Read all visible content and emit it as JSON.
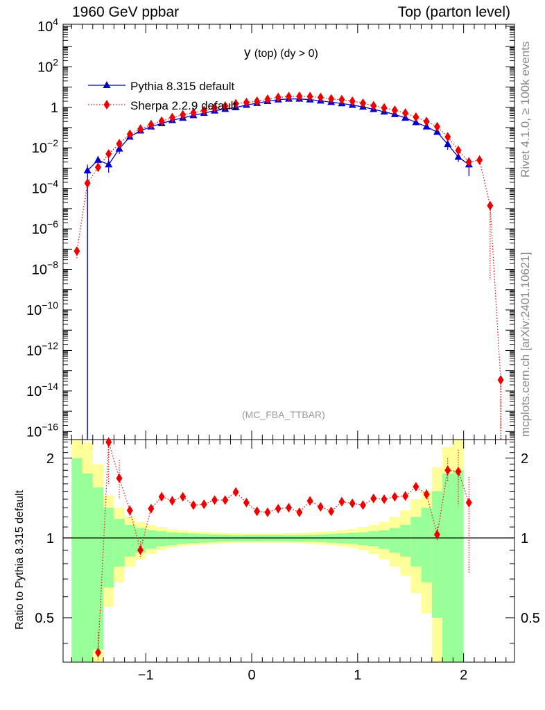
{
  "header": {
    "left_title": "1960 GeV ppbar",
    "right_title": "Top (parton level)"
  },
  "plot_title_main": "y",
  "plot_title_sub": "(top) (dy > 0)",
  "analysis_tag": "(MC_FBA_TTBAR)",
  "side_labels": {
    "rivet": "Rivet 4.1.0, ≥ 100k events",
    "mcplots": "mcplots.cern.ch [arXiv:2401.10621]"
  },
  "ratio_ylabel": "Ratio to Pythia 8.315 default",
  "colors": {
    "pythia": "#0000cc",
    "sherpa": "#ee0000",
    "band_inner": "#99ff99",
    "band_outer": "#ffff99"
  },
  "chart_data": {
    "type": "scatter",
    "x_edges": [
      -1.7,
      -1.6,
      -1.5,
      -1.4,
      -1.3,
      -1.2,
      -1.1,
      -1.0,
      -0.9,
      -0.8,
      -0.7,
      -0.6,
      -0.5,
      -0.4,
      -0.3,
      -0.2,
      -0.1,
      0.0,
      0.1,
      0.2,
      0.3,
      0.4,
      0.5,
      0.6,
      0.7,
      0.8,
      0.9,
      1.0,
      1.1,
      1.2,
      1.3,
      1.4,
      1.5,
      1.6,
      1.7,
      1.8,
      1.9,
      2.0,
      2.1,
      2.2,
      2.3,
      2.4
    ],
    "xlim": [
      -1.78,
      2.48
    ],
    "xticks": [
      -1,
      0,
      1,
      2
    ],
    "main": {
      "yscale": "log",
      "ylim_exp": [
        -16.4,
        4.1
      ],
      "ytick_exponents": [
        4,
        2,
        0,
        -2,
        -4,
        -6,
        -8,
        -10,
        -12,
        -14,
        -16
      ],
      "ytick_labels": [
        "10^4",
        "10^2",
        "1",
        "10^-2",
        "10^-4",
        "10^-6",
        "10^-8",
        "10^-10",
        "10^-12",
        "10^-14",
        "10^-16"
      ]
    },
    "ratio": {
      "yscale": "log",
      "ylim": [
        0.34,
        2.35
      ],
      "yticks": [
        0.5,
        1,
        2
      ],
      "ytick_labels": [
        "0.5",
        "1",
        "2"
      ],
      "band_inner": [
        [
          0,
          2.0
        ],
        [
          0,
          1.75
        ],
        [
          0.38,
          1.55
        ],
        [
          0.65,
          1.3
        ],
        [
          0.78,
          1.18
        ],
        [
          0.85,
          1.12
        ],
        [
          0.88,
          1.09
        ],
        [
          0.91,
          1.07
        ],
        [
          0.93,
          1.06
        ],
        [
          0.94,
          1.05
        ],
        [
          0.95,
          1.045
        ],
        [
          0.955,
          1.04
        ],
        [
          0.96,
          1.035
        ],
        [
          0.965,
          1.03
        ],
        [
          0.97,
          1.028
        ],
        [
          0.97,
          1.025
        ],
        [
          0.972,
          1.024
        ],
        [
          0.972,
          1.024
        ],
        [
          0.972,
          1.024
        ],
        [
          0.972,
          1.024
        ],
        [
          0.972,
          1.025
        ],
        [
          0.97,
          1.026
        ],
        [
          0.968,
          1.028
        ],
        [
          0.965,
          1.03
        ],
        [
          0.96,
          1.035
        ],
        [
          0.955,
          1.04
        ],
        [
          0.95,
          1.045
        ],
        [
          0.94,
          1.05
        ],
        [
          0.93,
          1.06
        ],
        [
          0.91,
          1.07
        ],
        [
          0.88,
          1.09
        ],
        [
          0.85,
          1.12
        ],
        [
          0.78,
          1.2
        ],
        [
          0.68,
          1.3
        ],
        [
          0.5,
          1.5
        ],
        [
          0.2,
          1.75
        ],
        [
          0.1,
          1.8
        ]
      ],
      "band_outer": [
        [
          0,
          2.6
        ],
        [
          0,
          2.3
        ],
        [
          0.34,
          1.9
        ],
        [
          0.55,
          1.45
        ],
        [
          0.68,
          1.3
        ],
        [
          0.78,
          1.2
        ],
        [
          0.83,
          1.15
        ],
        [
          0.87,
          1.12
        ],
        [
          0.9,
          1.1
        ],
        [
          0.92,
          1.08
        ],
        [
          0.93,
          1.07
        ],
        [
          0.94,
          1.06
        ],
        [
          0.945,
          1.055
        ],
        [
          0.95,
          1.05
        ],
        [
          0.955,
          1.045
        ],
        [
          0.96,
          1.042
        ],
        [
          0.96,
          1.04
        ],
        [
          0.96,
          1.04
        ],
        [
          0.96,
          1.04
        ],
        [
          0.96,
          1.04
        ],
        [
          0.96,
          1.042
        ],
        [
          0.955,
          1.045
        ],
        [
          0.95,
          1.05
        ],
        [
          0.945,
          1.055
        ],
        [
          0.94,
          1.06
        ],
        [
          0.93,
          1.07
        ],
        [
          0.92,
          1.08
        ],
        [
          0.9,
          1.1
        ],
        [
          0.87,
          1.12
        ],
        [
          0.83,
          1.15
        ],
        [
          0.78,
          1.2
        ],
        [
          0.72,
          1.27
        ],
        [
          0.62,
          1.4
        ],
        [
          0.52,
          1.5
        ],
        [
          0.34,
          1.85
        ],
        [
          0.2,
          2.2
        ],
        [
          0.1,
          2.5
        ]
      ]
    },
    "series": [
      {
        "name": "Pythia 8.315 default",
        "marker": "triangle",
        "x": [
          -1.55,
          -1.45,
          -1.35,
          -1.25,
          -1.15,
          -1.05,
          -0.95,
          -0.85,
          -0.75,
          -0.65,
          -0.55,
          -0.45,
          -0.35,
          -0.25,
          -0.15,
          -0.05,
          0.05,
          0.15,
          0.25,
          0.35,
          0.45,
          0.55,
          0.65,
          0.75,
          0.85,
          0.95,
          1.05,
          1.15,
          1.25,
          1.35,
          1.45,
          1.55,
          1.65,
          1.75,
          1.85,
          1.95,
          2.05
        ],
        "y": [
          0.00075,
          0.0025,
          0.0015,
          0.009,
          0.035,
          0.07,
          0.11,
          0.16,
          0.23,
          0.3,
          0.4,
          0.52,
          0.68,
          0.82,
          0.98,
          1.3,
          1.6,
          2.0,
          2.4,
          2.6,
          2.6,
          2.4,
          2.1,
          1.8,
          1.55,
          1.3,
          1.05,
          0.8,
          0.6,
          0.45,
          0.3,
          0.18,
          0.11,
          0.06,
          0.015,
          0.0035,
          0.0015
        ],
        "yerr_up": [
          0.0015,
          0.004,
          0.003,
          0.015,
          0.045,
          0.085,
          0.125,
          0.175,
          0.25,
          0.32,
          0.42,
          0.55,
          0.71,
          0.85,
          1.0,
          1.33,
          1.63,
          2.03,
          2.43,
          2.63,
          2.63,
          2.43,
          2.13,
          1.83,
          1.58,
          1.33,
          1.08,
          0.83,
          0.63,
          0.48,
          0.33,
          0.2,
          0.13,
          0.075,
          0.025,
          0.006,
          0.003
        ],
        "yerr_down": [
          1e-17,
          0.0015,
          0.0006,
          0.005,
          0.028,
          0.058,
          0.095,
          0.145,
          0.21,
          0.28,
          0.38,
          0.49,
          0.65,
          0.79,
          0.95,
          1.27,
          1.57,
          1.97,
          2.37,
          2.57,
          2.57,
          2.37,
          2.07,
          1.77,
          1.52,
          1.27,
          1.02,
          0.77,
          0.57,
          0.42,
          0.27,
          0.16,
          0.09,
          0.045,
          0.008,
          0.002,
          0.0004
        ]
      },
      {
        "name": "Sherpa 2.2.9 default",
        "marker": "diamond",
        "x": [
          -1.65,
          -1.55,
          -1.45,
          -1.35,
          -1.25,
          -1.15,
          -1.05,
          -0.95,
          -0.85,
          -0.75,
          -0.65,
          -0.55,
          -0.45,
          -0.35,
          -0.25,
          -0.15,
          -0.05,
          0.05,
          0.15,
          0.25,
          0.35,
          0.45,
          0.55,
          0.65,
          0.75,
          0.85,
          0.95,
          1.05,
          1.15,
          1.25,
          1.35,
          1.45,
          1.55,
          1.65,
          1.75,
          1.85,
          1.95,
          2.05,
          2.15,
          2.25,
          2.35
        ],
        "y": [
          8e-08,
          0.00018,
          0.0011,
          0.005,
          0.016,
          0.047,
          0.085,
          0.14,
          0.21,
          0.31,
          0.43,
          0.54,
          0.7,
          0.95,
          1.15,
          1.5,
          1.75,
          2.0,
          2.5,
          3.1,
          3.4,
          3.5,
          3.4,
          3.1,
          2.6,
          2.4,
          2.0,
          1.6,
          1.2,
          0.94,
          0.72,
          0.52,
          0.33,
          0.2,
          0.11,
          0.035,
          0.0075,
          0.002,
          0.0025,
          1.4e-05,
          3.5e-14
        ],
        "yerr_up": [
          1.2e-07,
          0.00025,
          0.0014,
          0.006,
          0.018,
          0.05,
          0.09,
          0.145,
          0.22,
          0.32,
          0.44,
          0.55,
          0.72,
          0.97,
          1.17,
          1.52,
          1.77,
          2.02,
          2.52,
          3.12,
          3.42,
          3.52,
          3.42,
          3.12,
          2.62,
          2.42,
          2.02,
          1.62,
          1.22,
          0.96,
          0.74,
          0.54,
          0.35,
          0.22,
          0.12,
          0.04,
          0.009,
          0.0025,
          0.0032,
          1.6e-05,
          5e-14
        ],
        "yerr_down": [
          3e-08,
          0.0001,
          0.0008,
          0.004,
          0.014,
          0.044,
          0.08,
          0.135,
          0.2,
          0.3,
          0.42,
          0.53,
          0.68,
          0.93,
          1.13,
          1.48,
          1.73,
          1.98,
          2.48,
          3.08,
          3.38,
          3.48,
          3.38,
          3.08,
          2.58,
          2.38,
          1.98,
          1.58,
          1.18,
          0.92,
          0.7,
          0.5,
          0.31,
          0.18,
          0.1,
          0.03,
          0.006,
          0.0015,
          0.0018,
          3e-09,
          1e-17
        ],
        "ratio_x": [
          -1.45,
          -1.35,
          -1.25,
          -1.15,
          -1.05,
          -0.95,
          -0.85,
          -0.75,
          -0.65,
          -0.55,
          -0.45,
          -0.35,
          -0.25,
          -0.15,
          -0.05,
          0.05,
          0.15,
          0.25,
          0.35,
          0.45,
          0.55,
          0.65,
          0.75,
          0.85,
          0.95,
          1.05,
          1.15,
          1.25,
          1.35,
          1.45,
          1.55,
          1.65,
          1.75,
          1.85,
          1.95,
          2.05
        ],
        "ratio_y": [
          0.37,
          2.3,
          1.68,
          1.27,
          0.9,
          1.29,
          1.43,
          1.38,
          1.43,
          1.33,
          1.34,
          1.39,
          1.39,
          1.49,
          1.36,
          1.26,
          1.25,
          1.29,
          1.3,
          1.25,
          1.38,
          1.31,
          1.26,
          1.37,
          1.35,
          1.33,
          1.41,
          1.4,
          1.43,
          1.44,
          1.56,
          1.46,
          1.03,
          1.8,
          1.78,
          1.36
        ],
        "ratio_err_up": [
          0.44,
          2.4,
          1.97,
          1.33,
          0.97,
          1.34,
          1.49,
          1.44,
          1.48,
          1.38,
          1.39,
          1.43,
          1.43,
          1.54,
          1.41,
          1.3,
          1.29,
          1.33,
          1.34,
          1.29,
          1.42,
          1.35,
          1.3,
          1.41,
          1.39,
          1.38,
          1.46,
          1.45,
          1.48,
          1.5,
          1.62,
          1.53,
          1.1,
          2.0,
          2.15,
          1.7
        ],
        "ratio_err_down": [
          0.34,
          1.6,
          1.4,
          1.19,
          0.85,
          1.23,
          1.37,
          1.33,
          1.38,
          1.28,
          1.29,
          1.35,
          1.35,
          1.44,
          1.32,
          1.22,
          1.22,
          1.25,
          1.27,
          1.22,
          1.34,
          1.28,
          1.22,
          1.33,
          1.31,
          1.29,
          1.37,
          1.35,
          1.39,
          1.39,
          1.5,
          1.4,
          0.97,
          1.62,
          1.32,
          0.74
        ]
      }
    ]
  }
}
